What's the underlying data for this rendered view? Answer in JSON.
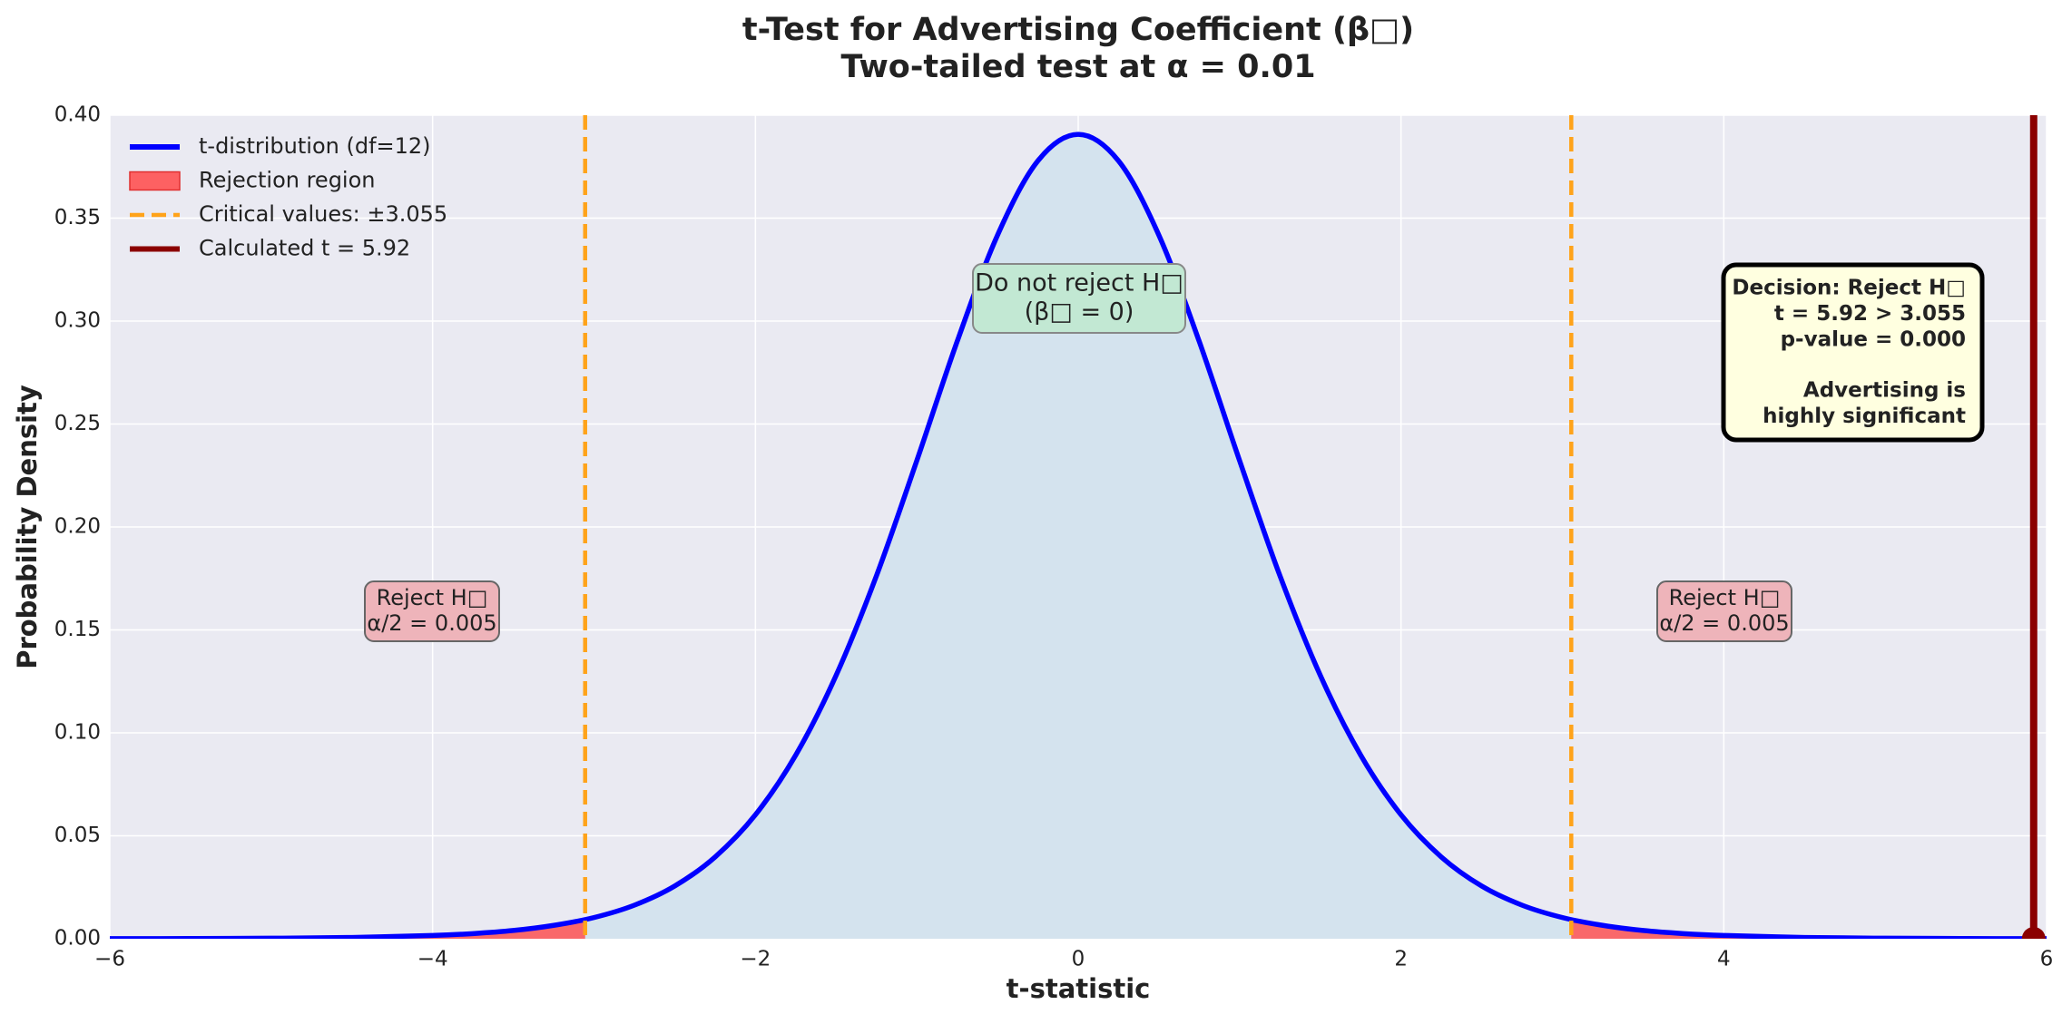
{
  "chart_data": {
    "type": "line",
    "title": "t-Test for Advertising Coefficient (β□)",
    "subtitle": "Two-tailed test at α = 0.01",
    "xlabel": "t-statistic",
    "ylabel": "Probability Density",
    "x": [
      -6,
      -5.5,
      -5,
      -4.5,
      -4,
      -3.75,
      -3.5,
      -3.25,
      -3,
      -2.75,
      -2.5,
      -2.25,
      -2,
      -1.75,
      -1.5,
      -1.25,
      -1,
      -0.75,
      -0.5,
      -0.25,
      0,
      0.25,
      0.5,
      0.75,
      1,
      1.25,
      1.5,
      1.75,
      2,
      2.25,
      2.5,
      2.75,
      3,
      3.25,
      3.5,
      3.75,
      4,
      4.5,
      5,
      5.5,
      6
    ],
    "series": [
      {
        "name": "t-distribution (df=12)",
        "color": "#0000ff",
        "values": [
          5e-05,
          0.00011,
          0.00026,
          0.00063,
          0.0016,
          0.0025,
          0.004,
          0.0065,
          0.0103,
          0.0163,
          0.0256,
          0.0397,
          0.0602,
          0.0892,
          0.1279,
          0.1763,
          0.2322,
          0.2901,
          0.3417,
          0.3778,
          0.3907,
          0.3778,
          0.3417,
          0.2901,
          0.2322,
          0.1763,
          0.1279,
          0.0892,
          0.0602,
          0.0397,
          0.0256,
          0.0163,
          0.0103,
          0.0065,
          0.004,
          0.0025,
          0.0016,
          0.00063,
          0.00026,
          0.00011,
          5e-05
        ]
      }
    ],
    "area_color": "#d4e3ee",
    "rejection": {
      "name": "Rejection region",
      "color": "#ff5252"
    },
    "critical": {
      "name": "Critical values: ±3.055",
      "value": 3.055,
      "color": "#ffa31a"
    },
    "calculated": {
      "name": "Calculated t = 5.92",
      "value": 5.92,
      "color": "#8b0000"
    },
    "annotations": {
      "center": [
        "Do not reject H□",
        "(β□ = 0)"
      ],
      "left": [
        "Reject H□",
        "α/2 = 0.005"
      ],
      "right": [
        "Reject H□",
        "α/2 = 0.005"
      ],
      "decision": [
        "Decision: Reject H□",
        "t = 5.92 > 3.055",
        "p-value = 0.000"
      ],
      "conclusion": [
        "Advertising is",
        "highly significant"
      ]
    },
    "xlim": [
      -6,
      6
    ],
    "xticks": [
      {
        "value": -6,
        "label": "−6"
      },
      {
        "value": -4,
        "label": "−4"
      },
      {
        "value": -2,
        "label": "−2"
      },
      0,
      2,
      4,
      6
    ],
    "ylim": [
      0,
      0.4
    ],
    "yticks": [
      {
        "value": 0,
        "label": "0.00"
      },
      {
        "value": 0.05,
        "label": "0.05"
      },
      {
        "value": 0.1,
        "label": "0.10"
      },
      {
        "value": 0.15,
        "label": "0.15"
      },
      {
        "value": 0.2,
        "label": "0.20"
      },
      {
        "value": 0.25,
        "label": "0.25"
      },
      {
        "value": 0.3,
        "label": "0.30"
      },
      {
        "value": 0.35,
        "label": "0.35"
      },
      {
        "value": 0.4,
        "label": "0.40"
      }
    ],
    "grid": true,
    "legend": "upper left"
  }
}
